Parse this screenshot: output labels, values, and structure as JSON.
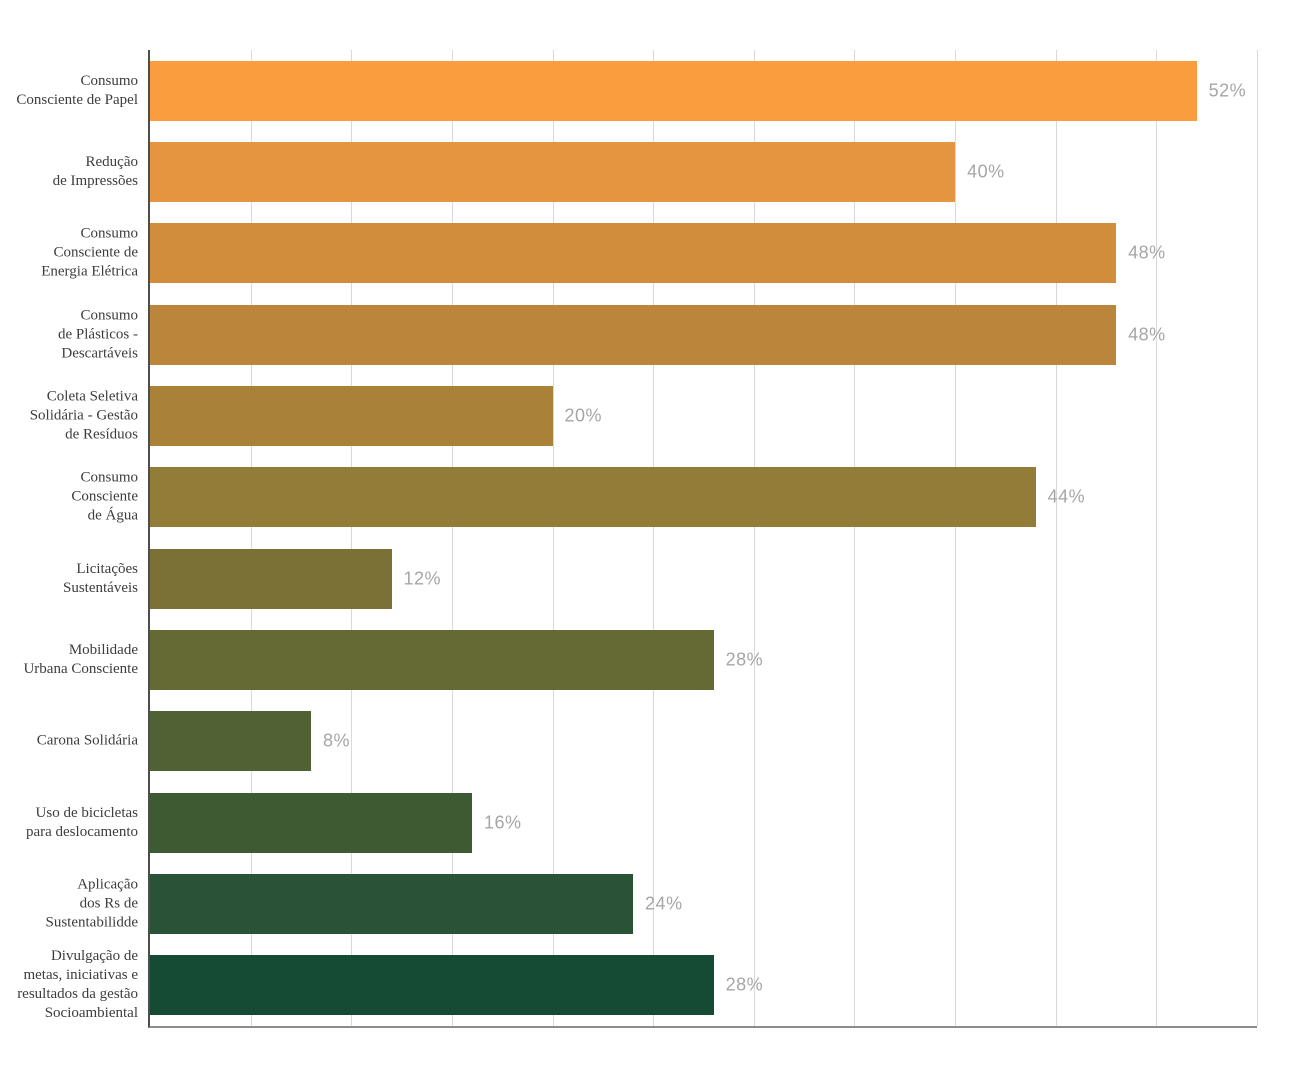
{
  "chart_data": {
    "type": "bar",
    "orientation": "horizontal",
    "title": "",
    "xlabel": "",
    "ylabel": "",
    "xlim": [
      0,
      55
    ],
    "gridline_step": 5,
    "grid": true,
    "legend": false,
    "categories": [
      "Consumo\nConsciente de Papel",
      "Redução\nde Impressões",
      "Consumo\nConsciente de\nEnergia Elétrica",
      "Consumo\nde Plásticos -\nDescartáveis",
      "Coleta Seletiva\nSolidária - Gestão\nde Resíduos",
      "Consumo\nConsciente\nde Água",
      "Licitações\nSustentáveis",
      "Mobilidade\nUrbana Consciente",
      "Carona Solidária",
      "Uso de bicicletas\npara deslocamento",
      "Aplicação\ndos Rs de\nSustentabilidde",
      "Divulgação de\nmetas, iniciativas e\nresultados da gestão\nSocioambiental"
    ],
    "values": [
      52,
      40,
      48,
      48,
      20,
      44,
      12,
      28,
      8,
      16,
      24,
      28
    ],
    "value_labels": [
      "52%",
      "40%",
      "48%",
      "48%",
      "20%",
      "44%",
      "12%",
      "28%",
      "8%",
      "16%",
      "24%",
      "28%"
    ],
    "bar_colors": [
      "#F99D3E",
      "#E59440",
      "#D18C3C",
      "#BB863C",
      "#A98139",
      "#937B38",
      "#7B7136",
      "#656A35",
      "#506234",
      "#3D5A33",
      "#2A5236",
      "#154A35"
    ],
    "colors": {
      "background": "#ffffff",
      "gridline": "#d9d9d9",
      "axis_left": "#4d4d4d",
      "axis_bottom": "#8c8c8c",
      "value_label": "#a6a6a6",
      "category_label": "#3d3d3d"
    }
  }
}
